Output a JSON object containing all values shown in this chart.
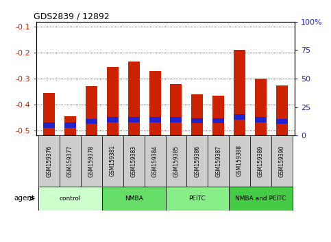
{
  "title": "GDS2839 / 12892",
  "samples": [
    "GSM159376",
    "GSM159377",
    "GSM159378",
    "GSM159381",
    "GSM159383",
    "GSM159384",
    "GSM159385",
    "GSM159386",
    "GSM159387",
    "GSM159388",
    "GSM159389",
    "GSM159390"
  ],
  "log_ratio": [
    -0.355,
    -0.445,
    -0.33,
    -0.255,
    -0.235,
    -0.27,
    -0.32,
    -0.36,
    -0.365,
    -0.19,
    -0.3,
    -0.325
  ],
  "pct_rank_bottom": [
    -0.49,
    -0.49,
    -0.475,
    -0.468,
    -0.468,
    -0.468,
    -0.468,
    -0.472,
    -0.472,
    -0.458,
    -0.468,
    -0.475
  ],
  "pct_rank_top": [
    -0.47,
    -0.47,
    -0.455,
    -0.448,
    -0.448,
    -0.448,
    -0.448,
    -0.452,
    -0.452,
    -0.438,
    -0.448,
    -0.455
  ],
  "groups": [
    {
      "label": "control",
      "start": 0,
      "end": 3,
      "color": "#ccffcc"
    },
    {
      "label": "NMBA",
      "start": 3,
      "end": 6,
      "color": "#66dd66"
    },
    {
      "label": "PEITC",
      "start": 6,
      "end": 9,
      "color": "#88ee88"
    },
    {
      "label": "NMBA and PEITC",
      "start": 9,
      "end": 12,
      "color": "#44cc44"
    }
  ],
  "ylim_left": [
    -0.52,
    -0.08
  ],
  "ylim_right": [
    0,
    100
  ],
  "yticks_left": [
    -0.5,
    -0.4,
    -0.3,
    -0.2,
    -0.1
  ],
  "yticks_right": [
    0,
    25,
    50,
    75,
    100
  ],
  "bar_color_red": "#cc2200",
  "bar_color_blue": "#2222cc",
  "bg_color": "#ffffff",
  "tick_label_color_left": "#cc2200",
  "tick_label_color_right": "#2222bb",
  "bar_width": 0.55
}
